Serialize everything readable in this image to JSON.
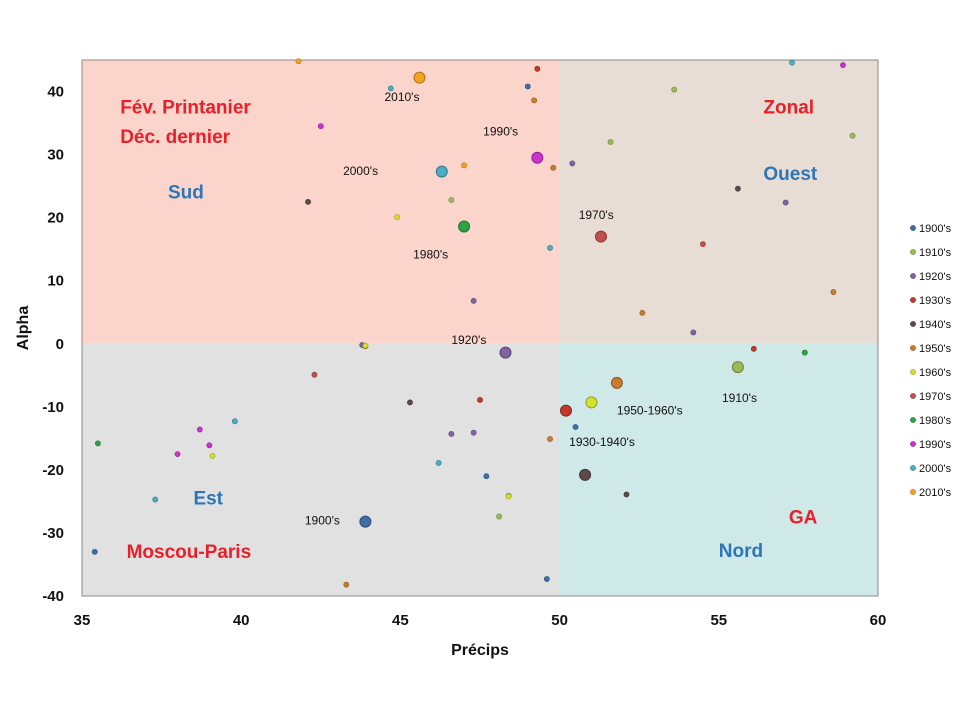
{
  "chart_data": {
    "type": "scatter",
    "xlabel": "Précips",
    "ylabel": "Alpha",
    "xlim": [
      35,
      60
    ],
    "ylim": [
      -40,
      45
    ],
    "xticks": [
      35,
      40,
      45,
      50,
      55,
      60
    ],
    "yticks": [
      -40,
      -30,
      -20,
      -10,
      0,
      10,
      20,
      30,
      40
    ],
    "grid": false,
    "legend_position": "right",
    "quadrants": [
      {
        "name": "top-left",
        "x": [
          35,
          50
        ],
        "y": [
          0,
          45
        ],
        "color": "#fbd5cc"
      },
      {
        "name": "top-right",
        "x": [
          50,
          60
        ],
        "y": [
          0,
          45
        ],
        "color": "#e8ddd5"
      },
      {
        "name": "bottom-left",
        "x": [
          35,
          50
        ],
        "y": [
          -40,
          0
        ],
        "color": "#e1e1e1"
      },
      {
        "name": "bottom-right",
        "x": [
          50,
          60
        ],
        "y": [
          -40,
          0
        ],
        "color": "#cfe8e8"
      }
    ],
    "region_labels": [
      {
        "text": "Fév. Printanier",
        "x": 36.2,
        "y": 36.5,
        "color": "#e8202a"
      },
      {
        "text": "Déc. dernier",
        "x": 36.2,
        "y": 31.8,
        "color": "#e8202a"
      },
      {
        "text": "Sud",
        "x": 37.7,
        "y": 23.0,
        "color": "#2e75b6"
      },
      {
        "text": "Zonal",
        "x": 56.4,
        "y": 36.5,
        "color": "#e8202a"
      },
      {
        "text": "Ouest",
        "x": 56.4,
        "y": 26.0,
        "color": "#2e75b6"
      },
      {
        "text": "Est",
        "x": 38.5,
        "y": -25.5,
        "color": "#2e75b6"
      },
      {
        "text": "Moscou-Paris",
        "x": 36.4,
        "y": -34.0,
        "color": "#e8202a"
      },
      {
        "text": "GA",
        "x": 57.2,
        "y": -28.5,
        "color": "#e8202a"
      },
      {
        "text": "Nord",
        "x": 55.0,
        "y": -33.8,
        "color": "#2e75b6"
      }
    ],
    "decade_labels": [
      {
        "text": "2010's",
        "x": 44.5,
        "y": 38.5
      },
      {
        "text": "1990's",
        "x": 47.6,
        "y": 33.0
      },
      {
        "text": "2000's",
        "x": 43.2,
        "y": 26.8
      },
      {
        "text": "1970's",
        "x": 50.6,
        "y": 19.8
      },
      {
        "text": "1980's",
        "x": 45.4,
        "y": 13.5
      },
      {
        "text": "1920's",
        "x": 46.6,
        "y": 0.0
      },
      {
        "text": "1950-1960's",
        "x": 51.8,
        "y": -11.2
      },
      {
        "text": "1910's",
        "x": 55.1,
        "y": -9.2
      },
      {
        "text": "1930-1940's",
        "x": 50.3,
        "y": -16.2
      },
      {
        "text": "1900's",
        "x": 42.0,
        "y": -28.7
      }
    ],
    "series": [
      {
        "name": "1900's",
        "color": "#3f6ea5",
        "points": [
          [
            35.4,
            -33
          ],
          [
            47.7,
            -21
          ],
          [
            50.5,
            -13.2
          ],
          [
            49.6,
            -37.3
          ],
          [
            49.0,
            40.8
          ]
        ],
        "mean": [
          43.9,
          -28.2
        ]
      },
      {
        "name": "1910's",
        "color": "#9bbb59",
        "points": [
          [
            53.6,
            40.3
          ],
          [
            59.2,
            33
          ],
          [
            51.6,
            32
          ],
          [
            46.6,
            22.8
          ],
          [
            48.1,
            -27.4
          ],
          [
            48.4,
            -24.1
          ],
          [
            57.7,
            -1.4
          ]
        ],
        "mean": [
          55.6,
          -3.7
        ]
      },
      {
        "name": "1920's",
        "color": "#8064a2",
        "points": [
          [
            50.4,
            28.6
          ],
          [
            57.1,
            22.4
          ],
          [
            47.3,
            6.8
          ],
          [
            54.2,
            1.8
          ],
          [
            46.6,
            -14.3
          ],
          [
            47.3,
            -14.1
          ],
          [
            43.8,
            -0.2
          ]
        ],
        "mean": [
          48.3,
          -1.4
        ]
      },
      {
        "name": "1930's",
        "color": "#c0392b",
        "points": [
          [
            49.3,
            43.6
          ],
          [
            47.5,
            -8.9
          ],
          [
            56.1,
            -0.8
          ]
        ],
        "mean": [
          50.2,
          -10.6
        ]
      },
      {
        "name": "1940's",
        "color": "#5a4a4a",
        "points": [
          [
            42.1,
            22.5
          ],
          [
            55.6,
            24.6
          ],
          [
            45.3,
            -9.3
          ],
          [
            52.1,
            -23.9
          ]
        ],
        "mean": [
          50.8,
          -20.8
        ]
      },
      {
        "name": "1950's",
        "color": "#c87c2e",
        "points": [
          [
            49.2,
            38.6
          ],
          [
            49.8,
            27.9
          ],
          [
            52.6,
            4.9
          ],
          [
            58.6,
            8.2
          ],
          [
            49.7,
            -15.1
          ],
          [
            43.3,
            -38.2
          ],
          [
            43.9,
            -0.4
          ]
        ],
        "mean": [
          51.8,
          -6.2
        ]
      },
      {
        "name": "1960's",
        "color": "#d2e22c",
        "points": [
          [
            44.9,
            20.1
          ],
          [
            39.1,
            -17.8
          ],
          [
            43.9,
            -0.3
          ],
          [
            48.4,
            -24.2
          ]
        ],
        "mean": [
          51.0,
          -9.3
        ]
      },
      {
        "name": "1970's",
        "color": "#c0504d",
        "points": [
          [
            54.5,
            15.8
          ],
          [
            42.3,
            -4.9
          ]
        ],
        "mean": [
          51.3,
          17
        ]
      },
      {
        "name": "1980's",
        "color": "#2ca444",
        "points": [
          [
            35.5,
            -15.8
          ],
          [
            57.7,
            -1.4
          ]
        ],
        "mean": [
          47.0,
          18.6
        ]
      },
      {
        "name": "1990's",
        "color": "#cc33cc",
        "points": [
          [
            42.5,
            34.5
          ],
          [
            58.9,
            44.2
          ],
          [
            38.7,
            -13.6
          ],
          [
            38.0,
            -17.5
          ],
          [
            39.0,
            -16.1
          ]
        ],
        "mean": [
          49.3,
          29.5
        ]
      },
      {
        "name": "2000's",
        "color": "#4bacc6",
        "points": [
          [
            44.7,
            40.5
          ],
          [
            49.7,
            15.2
          ],
          [
            57.3,
            44.6
          ],
          [
            39.8,
            -12.3
          ],
          [
            46.2,
            -18.9
          ],
          [
            37.3,
            -24.7
          ]
        ],
        "mean": [
          46.3,
          27.3
        ]
      },
      {
        "name": "2010's",
        "color": "#f5a31f",
        "points": [
          [
            41.8,
            44.8
          ],
          [
            47.0,
            28.3
          ]
        ],
        "mean": [
          45.6,
          42.2
        ]
      }
    ]
  }
}
